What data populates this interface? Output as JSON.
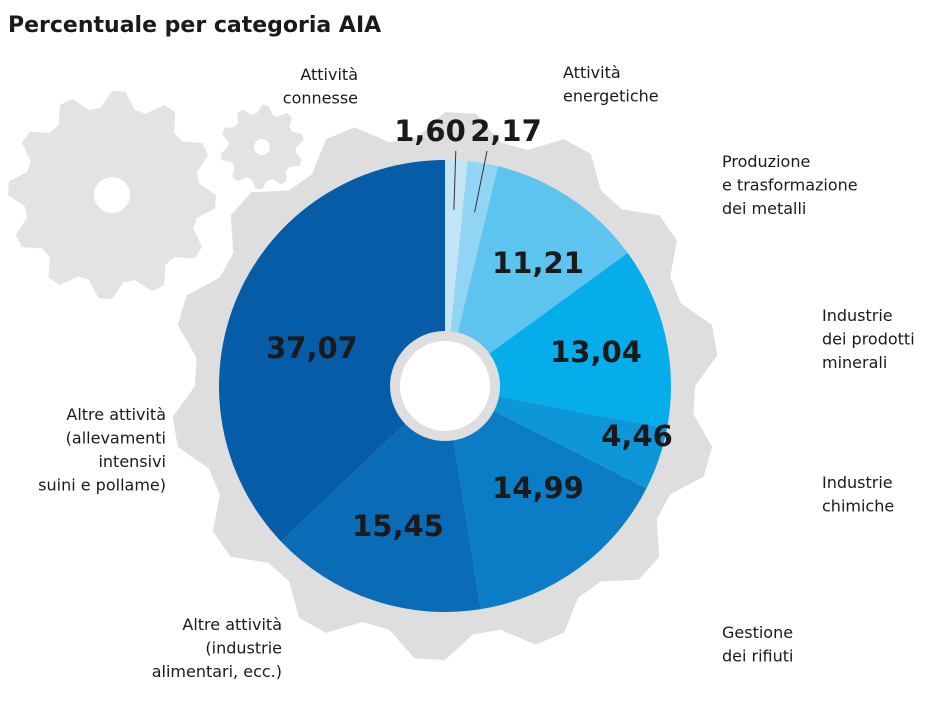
{
  "chart_data": {
    "type": "pie",
    "title": "Percentuale per categoria AIA",
    "categories": [
      "Attività\nconnesse",
      "Attività\nenergetiche",
      "Produzione\ne trasformazione\ndei metalli",
      "Industrie\ndei prodotti\nminerali",
      "Industrie\nchimiche",
      "Gestione\ndei rifiuti",
      "Altre attività\n(industrie\nalimentari, ecc.)",
      "Altre attività\n(allevamenti\nintensivi\nsuini e pollame)"
    ],
    "values": [
      1.6,
      2.17,
      11.21,
      13.04,
      4.46,
      14.99,
      15.45,
      37.07
    ],
    "value_labels": [
      "1,60",
      "2,17",
      "11,21",
      "13,04",
      "4,46",
      "14,99",
      "15,45",
      "37,07"
    ],
    "colors": [
      "#c3e5f8",
      "#92d4f3",
      "#5dc4f0",
      "#05aeea",
      "#0e97d8",
      "#0a7dc6",
      "#0a6bb6",
      "#075ca8"
    ]
  }
}
